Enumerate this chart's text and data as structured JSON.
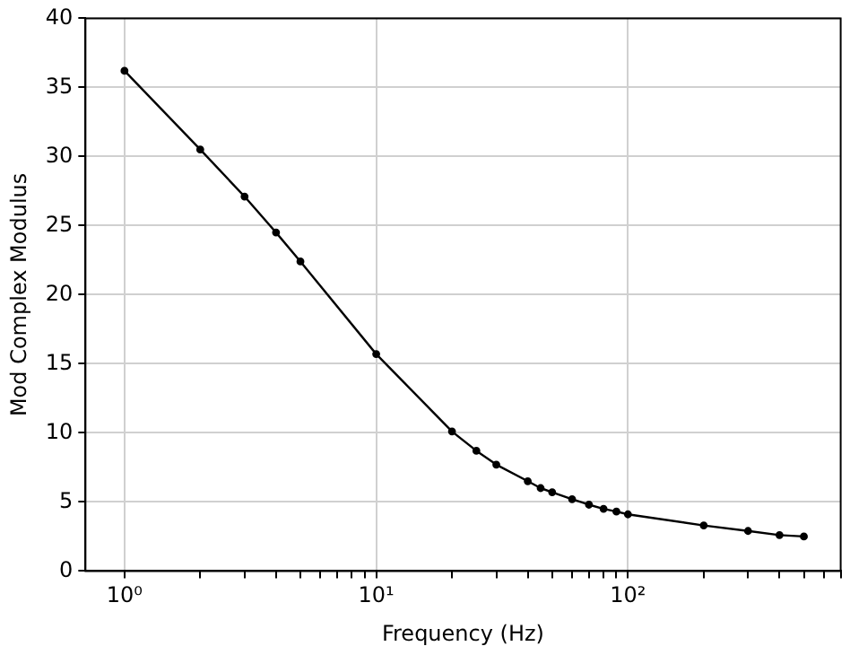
{
  "chart_data": {
    "type": "line",
    "xlabel": "Frequency (Hz)",
    "ylabel": "Mod Complex Modulus",
    "log": "x",
    "x": [
      1,
      2,
      3,
      4,
      5,
      10,
      20,
      25,
      30,
      40,
      45,
      50,
      60,
      70,
      80,
      90,
      100,
      200,
      300,
      400,
      500
    ],
    "series": [
      {
        "color": "#000000",
        "values": [
          36.2,
          30.5,
          27.1,
          24.5,
          22.4,
          15.7,
          10.1,
          8.7,
          7.7,
          6.5,
          6.0,
          5.7,
          5.2,
          4.8,
          4.5,
          4.3,
          4.1,
          3.3,
          2.9,
          2.6,
          2.5
        ]
      }
    ],
    "xlim": [
      0.73,
      700
    ],
    "xticks": [
      {
        "value": 1,
        "label": "10⁰"
      },
      {
        "value": 2,
        "label": null
      },
      {
        "value": 3,
        "label": null
      },
      {
        "value": 4,
        "label": null
      },
      {
        "value": 5,
        "label": null
      },
      {
        "value": 6,
        "label": null
      },
      {
        "value": 7,
        "label": null
      },
      {
        "value": 8,
        "label": null
      },
      {
        "value": 9,
        "label": null
      },
      {
        "value": 10,
        "label": "10¹"
      },
      {
        "value": 20,
        "label": null
      },
      {
        "value": 30,
        "label": null
      },
      {
        "value": 40,
        "label": null
      },
      {
        "value": 50,
        "label": null
      },
      {
        "value": 60,
        "label": null
      },
      {
        "value": 70,
        "label": null
      },
      {
        "value": 80,
        "label": null
      },
      {
        "value": 90,
        "label": null
      },
      {
        "value": 100,
        "label": "10²"
      },
      {
        "value": 200,
        "label": null
      },
      {
        "value": 300,
        "label": null
      },
      {
        "value": 400,
        "label": null
      },
      {
        "value": 500,
        "label": null
      },
      {
        "value": 600,
        "label": null
      },
      {
        "value": 700,
        "label": null
      }
    ],
    "ylim": [
      0,
      40
    ],
    "yticks": [
      0,
      5,
      10,
      15,
      20,
      25,
      30,
      35,
      40
    ],
    "grid": true,
    "legend": false,
    "marker": "circle",
    "line_style": "solid"
  }
}
